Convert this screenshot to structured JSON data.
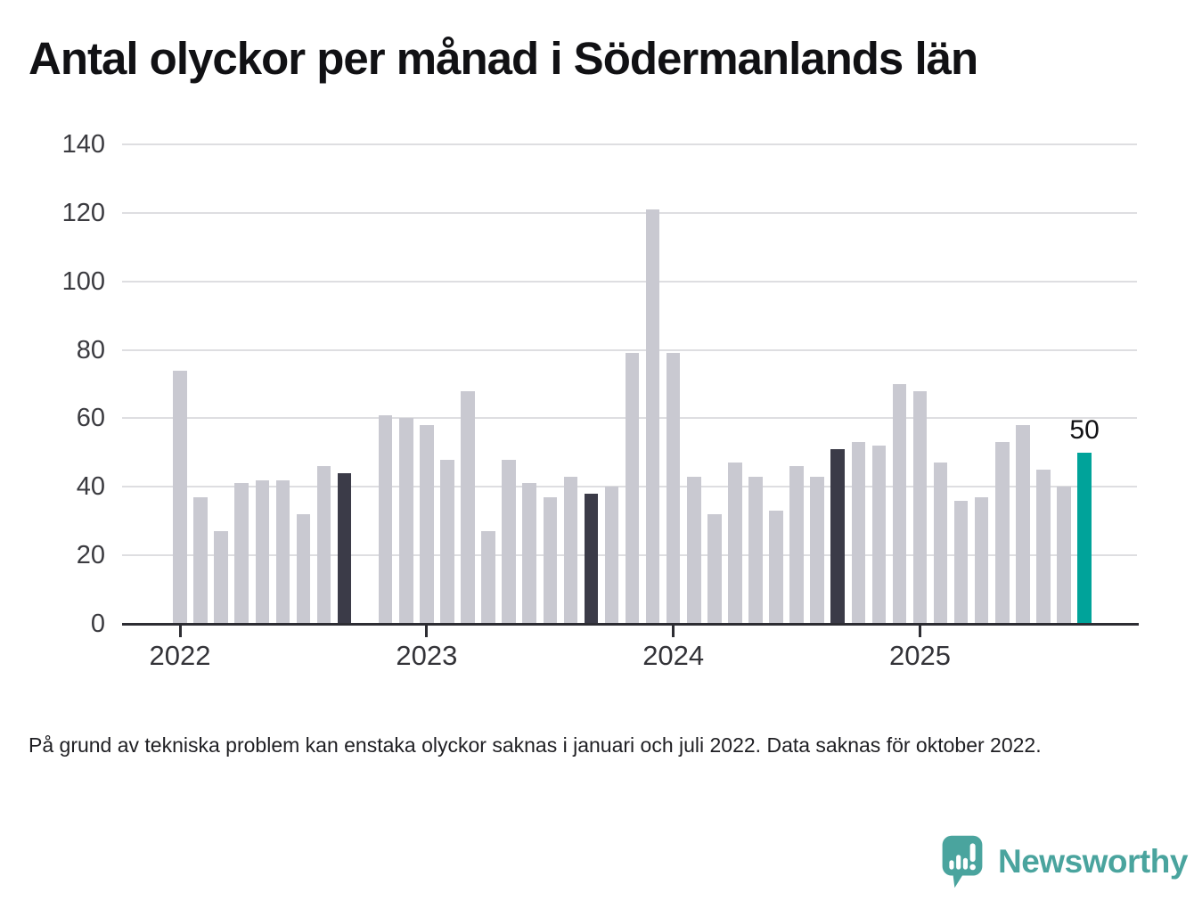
{
  "title": "Antal olyckor per månad i Södermanlands län",
  "footnote": "På grund av tekniska problem kan enstaka olyckor saknas i januari och juli 2022. Data saknas för oktober 2022.",
  "branding": {
    "name": "Newsworthy",
    "logo_icon": "speech-bubble-bar-chart-icon"
  },
  "colors": {
    "bar_default": "#c9c9d1",
    "bar_highlight": "#3b3b48",
    "bar_latest": "#00a39a",
    "brand_teal": "#4aa49e",
    "grid": "#dedee1",
    "axis": "#2d2d33",
    "text": "#111114"
  },
  "chart_data": {
    "type": "bar",
    "title": "Antal olyckor per månad i Södermanlands län",
    "xlabel": "",
    "ylabel": "",
    "ylim": [
      0,
      140
    ],
    "yticks": [
      0,
      20,
      40,
      60,
      80,
      100,
      120,
      140
    ],
    "grid": "horizontal",
    "legend": "none",
    "xticks": [
      "2022",
      "2023",
      "2024",
      "2025"
    ],
    "annotation": {
      "text": "50",
      "target": "sep 2025"
    },
    "series": [
      {
        "name": "Antal olyckor",
        "points": [
          {
            "label": "jan 2022",
            "value": 74,
            "role": "normal"
          },
          {
            "label": "feb 2022",
            "value": 37,
            "role": "normal"
          },
          {
            "label": "mar 2022",
            "value": 27,
            "role": "normal"
          },
          {
            "label": "apr 2022",
            "value": 41,
            "role": "normal"
          },
          {
            "label": "maj 2022",
            "value": 42,
            "role": "normal"
          },
          {
            "label": "jun 2022",
            "value": 42,
            "role": "normal"
          },
          {
            "label": "jul 2022",
            "value": 32,
            "role": "normal"
          },
          {
            "label": "aug 2022",
            "value": 46,
            "role": "normal"
          },
          {
            "label": "sep 2022",
            "value": 44,
            "role": "highlight"
          },
          {
            "label": "okt 2022",
            "value": null,
            "role": "missing"
          },
          {
            "label": "nov 2022",
            "value": 61,
            "role": "normal"
          },
          {
            "label": "dec 2022",
            "value": 60,
            "role": "normal"
          },
          {
            "label": "jan 2023",
            "value": 58,
            "role": "normal"
          },
          {
            "label": "feb 2023",
            "value": 48,
            "role": "normal"
          },
          {
            "label": "mar 2023",
            "value": 68,
            "role": "normal"
          },
          {
            "label": "apr 2023",
            "value": 27,
            "role": "normal"
          },
          {
            "label": "maj 2023",
            "value": 48,
            "role": "normal"
          },
          {
            "label": "jun 2023",
            "value": 41,
            "role": "normal"
          },
          {
            "label": "jul 2023",
            "value": 37,
            "role": "normal"
          },
          {
            "label": "aug 2023",
            "value": 43,
            "role": "normal"
          },
          {
            "label": "sep 2023",
            "value": 38,
            "role": "highlight"
          },
          {
            "label": "okt 2023",
            "value": 40,
            "role": "normal"
          },
          {
            "label": "nov 2023",
            "value": 79,
            "role": "normal"
          },
          {
            "label": "dec 2023",
            "value": 121,
            "role": "normal"
          },
          {
            "label": "jan 2024",
            "value": 79,
            "role": "normal"
          },
          {
            "label": "feb 2024",
            "value": 43,
            "role": "normal"
          },
          {
            "label": "mar 2024",
            "value": 32,
            "role": "normal"
          },
          {
            "label": "apr 2024",
            "value": 47,
            "role": "normal"
          },
          {
            "label": "maj 2024",
            "value": 43,
            "role": "normal"
          },
          {
            "label": "jun 2024",
            "value": 33,
            "role": "normal"
          },
          {
            "label": "jul 2024",
            "value": 46,
            "role": "normal"
          },
          {
            "label": "aug 2024",
            "value": 43,
            "role": "normal"
          },
          {
            "label": "sep 2024",
            "value": 51,
            "role": "highlight"
          },
          {
            "label": "okt 2024",
            "value": 53,
            "role": "normal"
          },
          {
            "label": "nov 2024",
            "value": 52,
            "role": "normal"
          },
          {
            "label": "dec 2024",
            "value": 70,
            "role": "normal"
          },
          {
            "label": "jan 2025",
            "value": 68,
            "role": "normal"
          },
          {
            "label": "feb 2025",
            "value": 47,
            "role": "normal"
          },
          {
            "label": "mar 2025",
            "value": 36,
            "role": "normal"
          },
          {
            "label": "apr 2025",
            "value": 37,
            "role": "normal"
          },
          {
            "label": "maj 2025",
            "value": 53,
            "role": "normal"
          },
          {
            "label": "jun 2025",
            "value": 58,
            "role": "normal"
          },
          {
            "label": "jul 2025",
            "value": 45,
            "role": "normal"
          },
          {
            "label": "aug 2025",
            "value": 40,
            "role": "normal"
          },
          {
            "label": "sep 2025",
            "value": 50,
            "role": "latest"
          }
        ]
      }
    ]
  }
}
